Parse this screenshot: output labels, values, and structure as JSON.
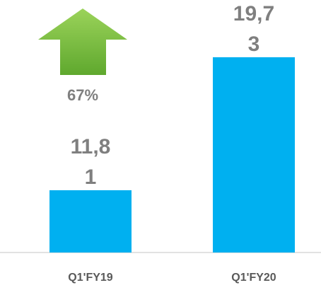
{
  "chart_data": {
    "type": "bar",
    "categories": [
      "Q1'FY19",
      "Q1'FY20"
    ],
    "values": [
      11.81,
      19.73
    ],
    "value_labels": [
      "11,81",
      "19,73"
    ],
    "color": "#00b0f0",
    "ylim": [
      8.1,
      22
    ],
    "annotation": "67%"
  }
}
